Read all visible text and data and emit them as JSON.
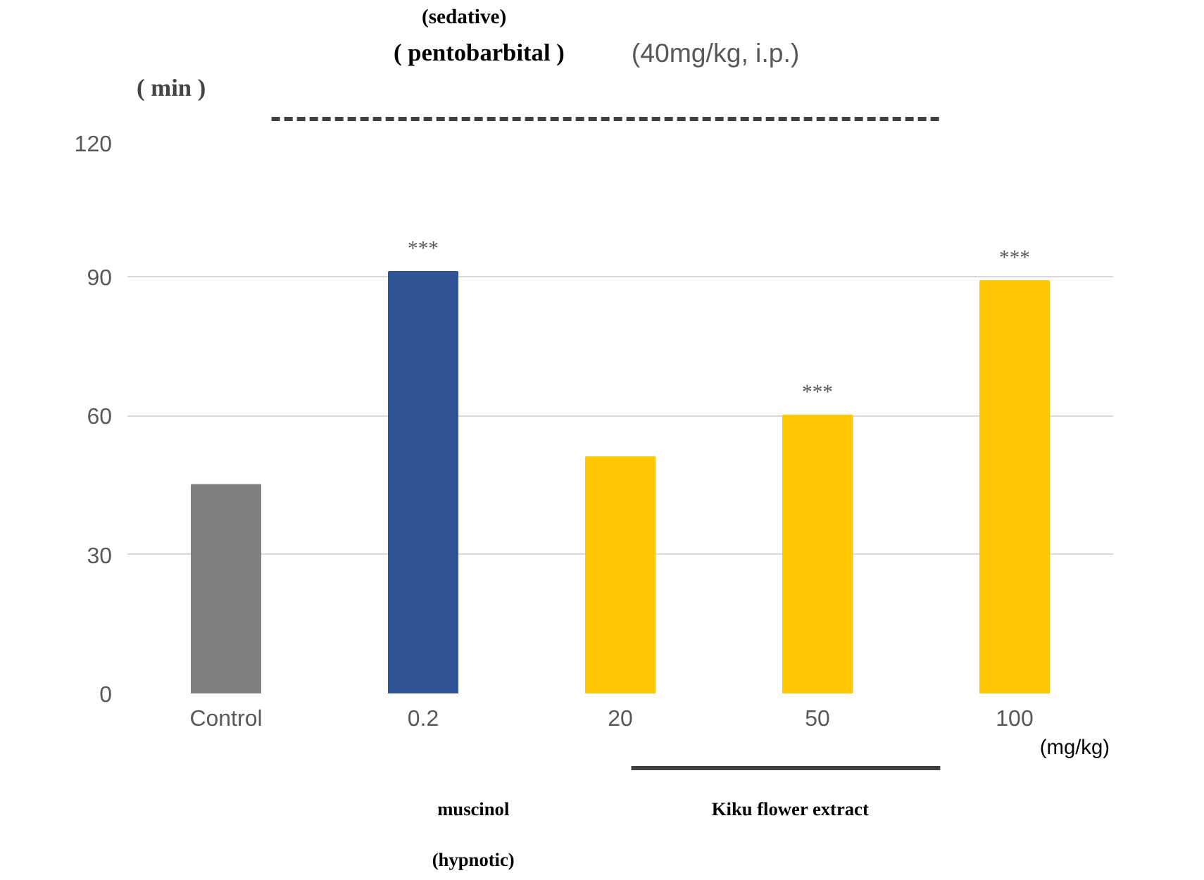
{
  "chart_data": {
    "type": "bar",
    "ylabel": "( min )",
    "categories": [
      "Control",
      "0.2",
      "20",
      "50",
      "100"
    ],
    "values": [
      45,
      91,
      51,
      60,
      89
    ],
    "colors": [
      "#7f7f7f",
      "#2f5597",
      "#ffc800",
      "#ffc800",
      "#ffc800"
    ],
    "ylim": [
      0,
      120
    ],
    "yticks": [
      0,
      30,
      60,
      90,
      120
    ],
    "grid": "y",
    "annotations": [
      {
        "text": "***",
        "x": "0.2",
        "y": 91
      },
      {
        "text": "***",
        "x": "50",
        "y": 60
      },
      {
        "text": "***",
        "x": "100",
        "y": 89
      },
      "(sedative)",
      "( pentobarbital )",
      "(40mg/kg, i.p.)",
      "(mg/kg)",
      "muscinol",
      "(hypnotic)",
      "Kiku flower extract"
    ]
  }
}
